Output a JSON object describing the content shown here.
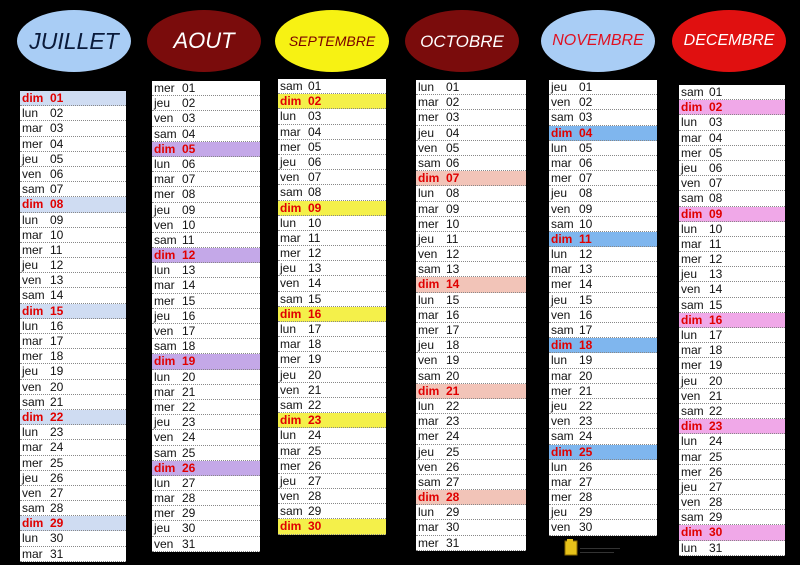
{
  "months": [
    {
      "name": "JUILLET",
      "oval_color": "#a9cdf5",
      "text_color": "#0a1a3a",
      "highlight": "#cfdcf2",
      "start_dow": 0,
      "days": 31
    },
    {
      "name": "AOUT",
      "oval_color": "#7a0c0c",
      "text_color": "#ffffff",
      "highlight": "#c4a8e8",
      "start_dow": 3,
      "days": 31
    },
    {
      "name": "SEPTEMBRE",
      "oval_color": "#f7f213",
      "text_color": "#7a0000",
      "highlight": "#f4f04a",
      "start_dow": 6,
      "days": 30
    },
    {
      "name": "OCTOBRE",
      "oval_color": "#7a0c0c",
      "text_color": "#ffffff",
      "highlight": "#f2c4b8",
      "start_dow": 1,
      "days": 31
    },
    {
      "name": "NOVEMBRE",
      "oval_color": "#a9cdf5",
      "text_color": "#e01020",
      "highlight": "#7fb6ee",
      "start_dow": 4,
      "days": 30
    },
    {
      "name": "DECEMBRE",
      "oval_color": "#e01010",
      "text_color": "#ffffff",
      "highlight": "#f0a8e8",
      "start_dow": 6,
      "days": 31
    }
  ],
  "day_abbr": [
    "dim",
    "lun",
    "mar",
    "mer",
    "jeu",
    "ven",
    "sam"
  ],
  "icons": {
    "logo": "yellow-folder-logo-icon"
  }
}
